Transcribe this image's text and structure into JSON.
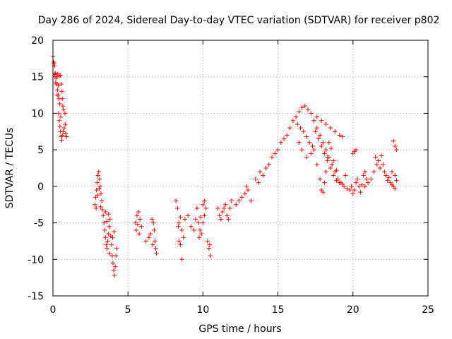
{
  "chart_data": {
    "type": "scatter",
    "title": "Day 286 of 2024, Sidereal Day-to-day VTEC variation (SDTVAR) for receiver p802",
    "xlabel": "GPS time / hours",
    "ylabel": "SDTVAR / TECUs",
    "xlim": [
      0,
      25
    ],
    "ylim": [
      -15,
      20
    ],
    "xticks": [
      0,
      5,
      10,
      15,
      20,
      25
    ],
    "yticks": [
      -15,
      -10,
      -5,
      0,
      5,
      10,
      15,
      20
    ],
    "xtick_labels": [
      "0",
      "5",
      "10",
      "15",
      "20",
      "25"
    ],
    "ytick_labels": [
      "-15",
      "-10",
      "-5",
      "0",
      "5",
      "10",
      "15",
      "20"
    ],
    "grid": true,
    "marker": "+",
    "series": [
      {
        "name": "SDTVAR",
        "color": "#ff0000",
        "points": [
          [
            0.0,
            17.8
          ],
          [
            0.05,
            17.0
          ],
          [
            0.1,
            16.5
          ],
          [
            0.15,
            15.5
          ],
          [
            0.2,
            14.8
          ],
          [
            0.25,
            14.0
          ],
          [
            0.3,
            13.2
          ],
          [
            0.35,
            12.5
          ],
          [
            0.4,
            12.0
          ],
          [
            0.45,
            11.3
          ],
          [
            0.12,
            15.3
          ],
          [
            0.22,
            15.0
          ],
          [
            0.32,
            15.4
          ],
          [
            0.42,
            15.1
          ],
          [
            0.5,
            15.2
          ],
          [
            0.55,
            14.0
          ],
          [
            0.6,
            13.0
          ],
          [
            0.62,
            12.0
          ],
          [
            0.66,
            11.0
          ],
          [
            0.7,
            10.5
          ],
          [
            0.38,
            10.0
          ],
          [
            0.42,
            9.0
          ],
          [
            0.46,
            8.2
          ],
          [
            0.5,
            7.5
          ],
          [
            0.55,
            6.8
          ],
          [
            0.58,
            6.3
          ],
          [
            0.62,
            7.0
          ],
          [
            0.68,
            7.5
          ],
          [
            0.75,
            8.0
          ],
          [
            0.82,
            8.5
          ],
          [
            0.85,
            7.2
          ],
          [
            0.9,
            6.8
          ],
          [
            0.8,
            10.0
          ],
          [
            0.35,
            13.8
          ],
          [
            0.28,
            12.5
          ],
          [
            0.18,
            14.2
          ],
          [
            0.08,
            16.8
          ],
          [
            0.52,
            9.5
          ],
          [
            2.8,
            -2.5
          ],
          [
            2.85,
            -1.5
          ],
          [
            2.9,
            -0.5
          ],
          [
            2.95,
            0.5
          ],
          [
            3.0,
            1.5
          ],
          [
            3.05,
            2.0
          ],
          [
            3.1,
            1.0
          ],
          [
            3.15,
            0.0
          ],
          [
            3.2,
            -1.0
          ],
          [
            3.25,
            -2.0
          ],
          [
            2.88,
            -3.0
          ],
          [
            2.98,
            -1.2
          ],
          [
            3.08,
            -0.3
          ],
          [
            3.18,
            -2.8
          ],
          [
            3.28,
            -3.2
          ],
          [
            3.35,
            -4.0
          ],
          [
            3.4,
            -5.0
          ],
          [
            3.45,
            -6.0
          ],
          [
            3.5,
            -7.0
          ],
          [
            3.55,
            -8.0
          ],
          [
            3.6,
            -8.5
          ],
          [
            3.65,
            -7.5
          ],
          [
            3.7,
            -6.5
          ],
          [
            3.75,
            -5.5
          ],
          [
            3.8,
            -4.5
          ],
          [
            3.5,
            -3.5
          ],
          [
            3.6,
            -4.8
          ],
          [
            3.7,
            -3.8
          ],
          [
            3.85,
            -6.8
          ],
          [
            3.9,
            -8.0
          ],
          [
            3.95,
            -9.5
          ],
          [
            4.0,
            -10.5
          ],
          [
            4.05,
            -11.5
          ],
          [
            4.1,
            -12.2
          ],
          [
            4.15,
            -11.0
          ],
          [
            4.2,
            -9.5
          ],
          [
            4.25,
            -8.5
          ],
          [
            3.98,
            -7.0
          ],
          [
            4.08,
            -6.2
          ],
          [
            3.75,
            -9.2
          ],
          [
            5.5,
            -5.0
          ],
          [
            5.6,
            -4.0
          ],
          [
            5.7,
            -3.5
          ],
          [
            5.8,
            -4.5
          ],
          [
            5.9,
            -5.5
          ],
          [
            5.55,
            -6.0
          ],
          [
            5.65,
            -5.2
          ],
          [
            5.75,
            -6.5
          ],
          [
            6.2,
            -7.5
          ],
          [
            6.4,
            -7.0
          ],
          [
            6.5,
            -6.5
          ],
          [
            6.6,
            -4.5
          ],
          [
            6.7,
            -5.0
          ],
          [
            6.75,
            -6.0
          ],
          [
            6.8,
            -7.5
          ],
          [
            6.85,
            -8.5
          ],
          [
            6.9,
            -9.2
          ],
          [
            6.65,
            -8.0
          ],
          [
            8.2,
            -2.0
          ],
          [
            8.3,
            -3.0
          ],
          [
            8.4,
            -5.0
          ],
          [
            8.5,
            -4.2
          ],
          [
            8.6,
            -6.0
          ],
          [
            8.7,
            -7.0
          ],
          [
            8.4,
            -7.5
          ],
          [
            8.5,
            -8.0
          ],
          [
            8.6,
            -10.0
          ],
          [
            8.35,
            -5.5
          ],
          [
            8.8,
            -4.5
          ],
          [
            9.0,
            -4.0
          ],
          [
            9.2,
            -5.5
          ],
          [
            9.4,
            -6.0
          ],
          [
            9.5,
            -4.5
          ],
          [
            9.6,
            -3.0
          ],
          [
            9.7,
            -5.0
          ],
          [
            9.8,
            -6.0
          ],
          [
            9.9,
            -6.5
          ],
          [
            10.0,
            -5.0
          ],
          [
            10.1,
            -4.0
          ],
          [
            10.2,
            -3.0
          ],
          [
            10.0,
            -2.5
          ],
          [
            10.1,
            -2.0
          ],
          [
            9.85,
            -4.2
          ],
          [
            9.75,
            -7.0
          ],
          [
            10.3,
            -7.5
          ],
          [
            10.4,
            -8.5
          ],
          [
            10.5,
            -9.5
          ],
          [
            10.45,
            -8.0
          ],
          [
            11.0,
            -3.0
          ],
          [
            11.1,
            -4.0
          ],
          [
            11.2,
            -4.5
          ],
          [
            11.3,
            -3.5
          ],
          [
            11.4,
            -3.0
          ],
          [
            11.5,
            -2.5
          ],
          [
            11.6,
            -4.0
          ],
          [
            11.7,
            -4.5
          ],
          [
            11.8,
            -3.0
          ],
          [
            11.9,
            -2.0
          ],
          [
            12.2,
            -2.5
          ],
          [
            12.4,
            -2.0
          ],
          [
            12.6,
            -1.5
          ],
          [
            12.8,
            -1.0
          ],
          [
            12.9,
            0.0
          ],
          [
            13.0,
            -0.5
          ],
          [
            13.2,
            -2.0
          ],
          [
            13.5,
            1.0
          ],
          [
            13.7,
            0.5
          ],
          [
            13.8,
            2.0
          ],
          [
            14.0,
            1.5
          ],
          [
            14.2,
            2.5
          ],
          [
            14.4,
            3.0
          ],
          [
            14.6,
            4.0
          ],
          [
            14.8,
            4.5
          ],
          [
            15.0,
            5.0
          ],
          [
            15.2,
            6.0
          ],
          [
            15.4,
            6.5
          ],
          [
            15.6,
            7.0
          ],
          [
            15.8,
            8.0
          ],
          [
            16.0,
            9.0
          ],
          [
            16.2,
            9.5
          ],
          [
            16.4,
            10.2
          ],
          [
            16.6,
            10.8
          ],
          [
            16.8,
            11.0
          ],
          [
            17.0,
            10.5
          ],
          [
            17.2,
            10.0
          ],
          [
            17.4,
            9.0
          ],
          [
            17.6,
            8.0
          ],
          [
            17.8,
            7.0
          ],
          [
            18.0,
            6.0
          ],
          [
            18.2,
            5.0
          ],
          [
            18.4,
            4.0
          ],
          [
            18.6,
            3.0
          ],
          [
            18.8,
            2.0
          ],
          [
            19.0,
            1.0
          ],
          [
            19.2,
            0.5
          ],
          [
            19.4,
            0.0
          ],
          [
            19.6,
            -0.3
          ],
          [
            19.8,
            -0.5
          ],
          [
            16.3,
            8.5
          ],
          [
            16.5,
            8.0
          ],
          [
            16.7,
            7.5
          ],
          [
            16.9,
            6.8
          ],
          [
            17.1,
            6.0
          ],
          [
            17.3,
            5.5
          ],
          [
            17.2,
            4.5
          ],
          [
            16.9,
            4.0
          ],
          [
            16.6,
            5.0
          ],
          [
            16.4,
            6.0
          ],
          [
            17.5,
            7.5
          ],
          [
            17.7,
            6.5
          ],
          [
            17.9,
            5.5
          ],
          [
            18.1,
            4.5
          ],
          [
            18.3,
            3.5
          ],
          [
            18.5,
            2.5
          ],
          [
            18.7,
            1.5
          ],
          [
            18.9,
            0.8
          ],
          [
            19.1,
            0.5
          ],
          [
            19.3,
            0.3
          ],
          [
            17.6,
            9.5
          ],
          [
            17.9,
            9.0
          ],
          [
            18.2,
            8.5
          ],
          [
            18.5,
            8.0
          ],
          [
            18.8,
            7.5
          ],
          [
            19.1,
            7.0
          ],
          [
            19.3,
            6.8
          ],
          [
            17.4,
            5.0
          ],
          [
            17.6,
            3.0
          ],
          [
            17.8,
            1.0
          ],
          [
            17.9,
            -0.5
          ],
          [
            18.0,
            -0.8
          ],
          [
            18.1,
            0.5
          ],
          [
            18.2,
            2.0
          ],
          [
            18.3,
            4.0
          ],
          [
            18.4,
            6.0
          ],
          [
            18.55,
            5.2
          ],
          [
            18.7,
            3.5
          ],
          [
            18.9,
            2.2
          ],
          [
            19.5,
            1.5
          ],
          [
            19.9,
            0.0
          ],
          [
            20.0,
            -1.0
          ],
          [
            20.1,
            -0.5
          ],
          [
            20.2,
            0.5
          ],
          [
            20.3,
            1.0
          ],
          [
            20.4,
            0.0
          ],
          [
            20.5,
            -0.8
          ],
          [
            20.6,
            0.2
          ],
          [
            20.7,
            1.5
          ],
          [
            20.8,
            2.0
          ],
          [
            20.0,
            4.5
          ],
          [
            20.2,
            5.0
          ],
          [
            20.1,
            4.8
          ],
          [
            21.0,
            0.5
          ],
          [
            21.2,
            1.0
          ],
          [
            21.4,
            2.0
          ],
          [
            21.6,
            3.0
          ],
          [
            21.8,
            2.5
          ],
          [
            21.5,
            4.0
          ],
          [
            21.7,
            3.5
          ],
          [
            22.0,
            3.0
          ],
          [
            22.1,
            2.0
          ],
          [
            22.2,
            1.5
          ],
          [
            22.3,
            0.8
          ],
          [
            22.4,
            1.2
          ],
          [
            22.5,
            0.5
          ],
          [
            22.6,
            0.2
          ],
          [
            22.7,
            0.0
          ],
          [
            22.8,
            -0.3
          ],
          [
            22.9,
            0.8
          ],
          [
            22.7,
            6.2
          ],
          [
            22.8,
            5.5
          ],
          [
            22.9,
            5.0
          ],
          [
            21.9,
            4.2
          ],
          [
            22.6,
            2.0
          ],
          [
            22.8,
            1.5
          ],
          [
            20.8,
            0.0
          ],
          [
            20.9,
            1.0
          ]
        ]
      }
    ]
  }
}
